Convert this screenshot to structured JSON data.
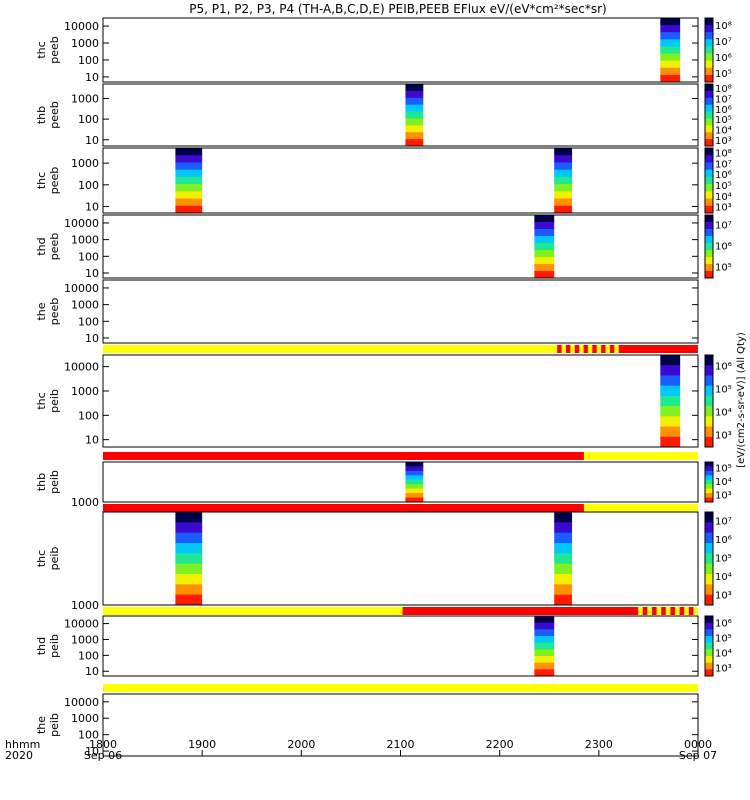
{
  "title": "P5, P1, P2, P3, P4 (TH-A,B,C,D,E) PEIB,PEEB EFlux eV/(eV*cm²*sec*sr)",
  "time_axis": {
    "label_line1": "hhmm",
    "label_line2": "2020",
    "tick_labels": [
      "1800",
      "1900",
      "2000",
      "2100",
      "2200",
      "2300",
      "0000"
    ],
    "date_labels": [
      "Sep 06",
      "",
      "",
      "",
      "",
      "",
      "Sep 07"
    ]
  },
  "colorbar_label_eflux": "[eV/(cm2-s-sr-eV)] (All Qty)",
  "colorbar_label_peib": "[eV/(cm2-s-sr-eV)] (All Qty)",
  "palette": [
    "#00004a",
    "#3a0ad0",
    "#1a5cff",
    "#00c8ff",
    "#20e890",
    "#80f020",
    "#f0f000",
    "#ff9000",
    "#ff1a00"
  ],
  "chart_data": {
    "type": "heatmap",
    "x_unit": "hours UT from 2020-09-06 18:00",
    "xlim": [
      0,
      6
    ],
    "panels": [
      {
        "probe": "thc",
        "instrument": "peeb",
        "kind": "spectrogram",
        "ylim": [
          5,
          30000
        ],
        "yscale": "log",
        "yticks": [
          "10",
          "100",
          "1000",
          "10000"
        ],
        "colorbar": [
          "10⁵",
          "10⁶",
          "10⁷",
          "10⁸"
        ],
        "intervals": [
          [
            5.62,
            5.82
          ]
        ]
      },
      {
        "probe": "thb",
        "instrument": "peeb",
        "kind": "spectrogram",
        "ylim": [
          5,
          5000
        ],
        "yscale": "log",
        "yticks": [
          "10",
          "100",
          "1000"
        ],
        "colorbar": [
          "10³",
          "10⁴",
          "10⁵",
          "10⁶",
          "10⁷",
          "10⁸"
        ],
        "intervals": [
          [
            3.05,
            3.23
          ]
        ]
      },
      {
        "probe": "thc",
        "instrument": "peeb",
        "kind": "spectrogram",
        "ylim": [
          5,
          5000
        ],
        "yscale": "log",
        "yticks": [
          "10",
          "100",
          "1000"
        ],
        "colorbar": [
          "10³",
          "10⁴",
          "10⁵",
          "10⁶",
          "10⁷",
          "10⁸"
        ],
        "intervals": [
          [
            0.73,
            1.0
          ],
          [
            4.55,
            4.73
          ]
        ]
      },
      {
        "probe": "thd",
        "instrument": "peeb",
        "kind": "spectrogram",
        "ylim": [
          5,
          30000
        ],
        "yscale": "log",
        "yticks": [
          "10",
          "100",
          "1000",
          "10000"
        ],
        "colorbar": [
          "10⁵",
          "10⁶",
          "10⁷"
        ],
        "intervals": [
          [
            4.35,
            4.55
          ]
        ]
      },
      {
        "probe": "the",
        "instrument": "peeb",
        "kind": "spectrogram",
        "ylim": [
          5,
          30000
        ],
        "yscale": "log",
        "yticks": [
          "10",
          "100",
          "1000",
          "10000"
        ],
        "colorbar": [],
        "intervals": []
      },
      {
        "kind": "flag_bar",
        "segments": [
          [
            0,
            4.58,
            "yellow"
          ],
          [
            4.58,
            5.2,
            "dashed-red"
          ],
          [
            5.2,
            6,
            "red"
          ]
        ]
      },
      {
        "probe": "thc",
        "instrument": "peib",
        "kind": "spectrogram",
        "ylim": [
          5,
          30000
        ],
        "yscale": "log",
        "yticks": [
          "10",
          "100",
          "1000",
          "10000"
        ],
        "colorbar": [
          "10³",
          "10⁴",
          "10⁵",
          "10⁶"
        ],
        "intervals": [
          [
            5.62,
            5.82
          ]
        ]
      },
      {
        "kind": "flag_bar",
        "segments": [
          [
            0,
            4.85,
            "red"
          ],
          [
            4.85,
            6,
            "yellow"
          ]
        ]
      },
      {
        "probe": "thb",
        "instrument": "peib",
        "kind": "spectrogram",
        "ylim": [
          1000,
          3500
        ],
        "yscale": "log",
        "yticks": [
          "1000"
        ],
        "colorbar": [
          "10³",
          "10⁴",
          "10⁵"
        ],
        "intervals": [
          [
            3.05,
            3.23
          ]
        ]
      },
      {
        "kind": "flag_bar",
        "segments": [
          [
            0,
            4.85,
            "red"
          ],
          [
            4.85,
            6,
            "yellow"
          ]
        ]
      },
      {
        "probe": "thc",
        "instrument": "peib",
        "kind": "spectrogram",
        "ylim": [
          1000,
          3500
        ],
        "yscale": "log",
        "yticks": [
          "1000"
        ],
        "colorbar": [
          "10³",
          "10⁴",
          "10⁵",
          "10⁶",
          "10⁷"
        ],
        "intervals": [
          [
            0.73,
            1.0
          ],
          [
            4.55,
            4.73
          ]
        ]
      },
      {
        "kind": "flag_bar",
        "segments": [
          [
            0,
            3.02,
            "yellow"
          ],
          [
            3.02,
            5.35,
            "red"
          ],
          [
            5.35,
            6,
            "dashed-red-yellow"
          ]
        ]
      },
      {
        "probe": "thd",
        "instrument": "peib",
        "kind": "spectrogram",
        "ylim": [
          5,
          30000
        ],
        "yscale": "log",
        "yticks": [
          "10",
          "100",
          "1000",
          "10000"
        ],
        "colorbar": [
          "10³",
          "10⁴",
          "10⁵",
          "10⁶"
        ],
        "intervals": [
          [
            4.35,
            4.55
          ]
        ]
      },
      {
        "kind": "flag_bar",
        "segments": [
          [
            0,
            6,
            "yellow"
          ]
        ]
      },
      {
        "probe": "the",
        "instrument": "peib",
        "kind": "spectrogram",
        "ylim": [
          5,
          30000
        ],
        "yscale": "log",
        "yticks": [
          "10",
          "100",
          "1000",
          "10000"
        ],
        "colorbar": [],
        "intervals": []
      }
    ]
  }
}
